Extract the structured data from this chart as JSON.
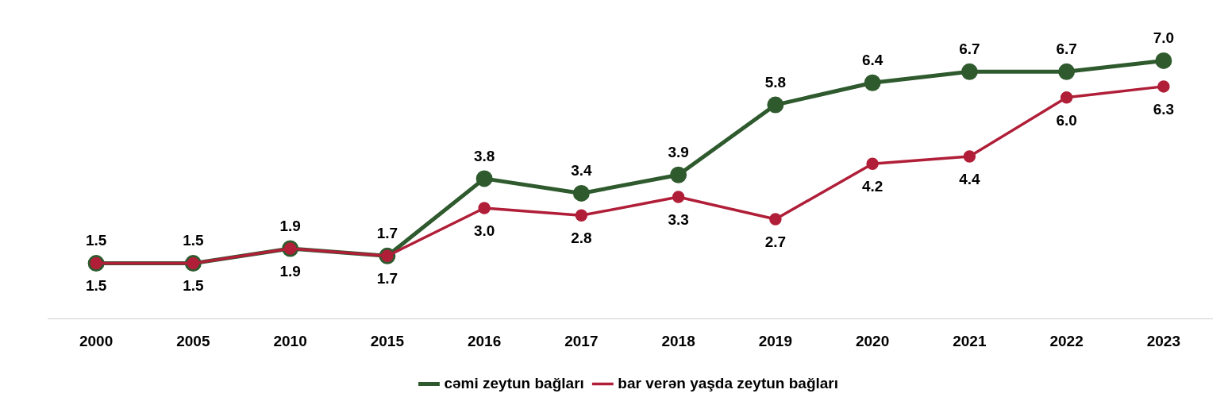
{
  "chart_data": {
    "type": "line",
    "categories": [
      "2000",
      "2005",
      "2010",
      "2015",
      "2016",
      "2017",
      "2018",
      "2019",
      "2020",
      "2021",
      "2022",
      "2023"
    ],
    "series": [
      {
        "name": "cəmi zeytun bağları",
        "color": "#2e5a2e",
        "values": [
          1.5,
          1.5,
          1.9,
          1.7,
          3.8,
          3.4,
          3.9,
          5.8,
          6.4,
          6.7,
          6.7,
          7.0
        ],
        "value_labels": [
          "1.5",
          "1.5",
          "1.9",
          "1.7",
          "3.8",
          "3.4",
          "3.9",
          "5.8",
          "6.4",
          "6.7",
          "6.7",
          "7.0"
        ]
      },
      {
        "name": "bar verən yaşda zeytun bağları",
        "color": "#b01e38",
        "values": [
          1.5,
          1.5,
          1.9,
          1.7,
          3.0,
          2.8,
          3.3,
          2.7,
          4.2,
          4.4,
          6.0,
          6.3
        ],
        "value_labels": [
          "1.5",
          "1.5",
          "1.9",
          "1.7",
          "3.0",
          "2.8",
          "3.3",
          "2.7",
          "4.2",
          "4.4",
          "6.0",
          "6.3"
        ]
      }
    ],
    "marker": "circle",
    "line_style": "solid",
    "grid": false,
    "legend": "bottom",
    "tick_labels": "x"
  }
}
